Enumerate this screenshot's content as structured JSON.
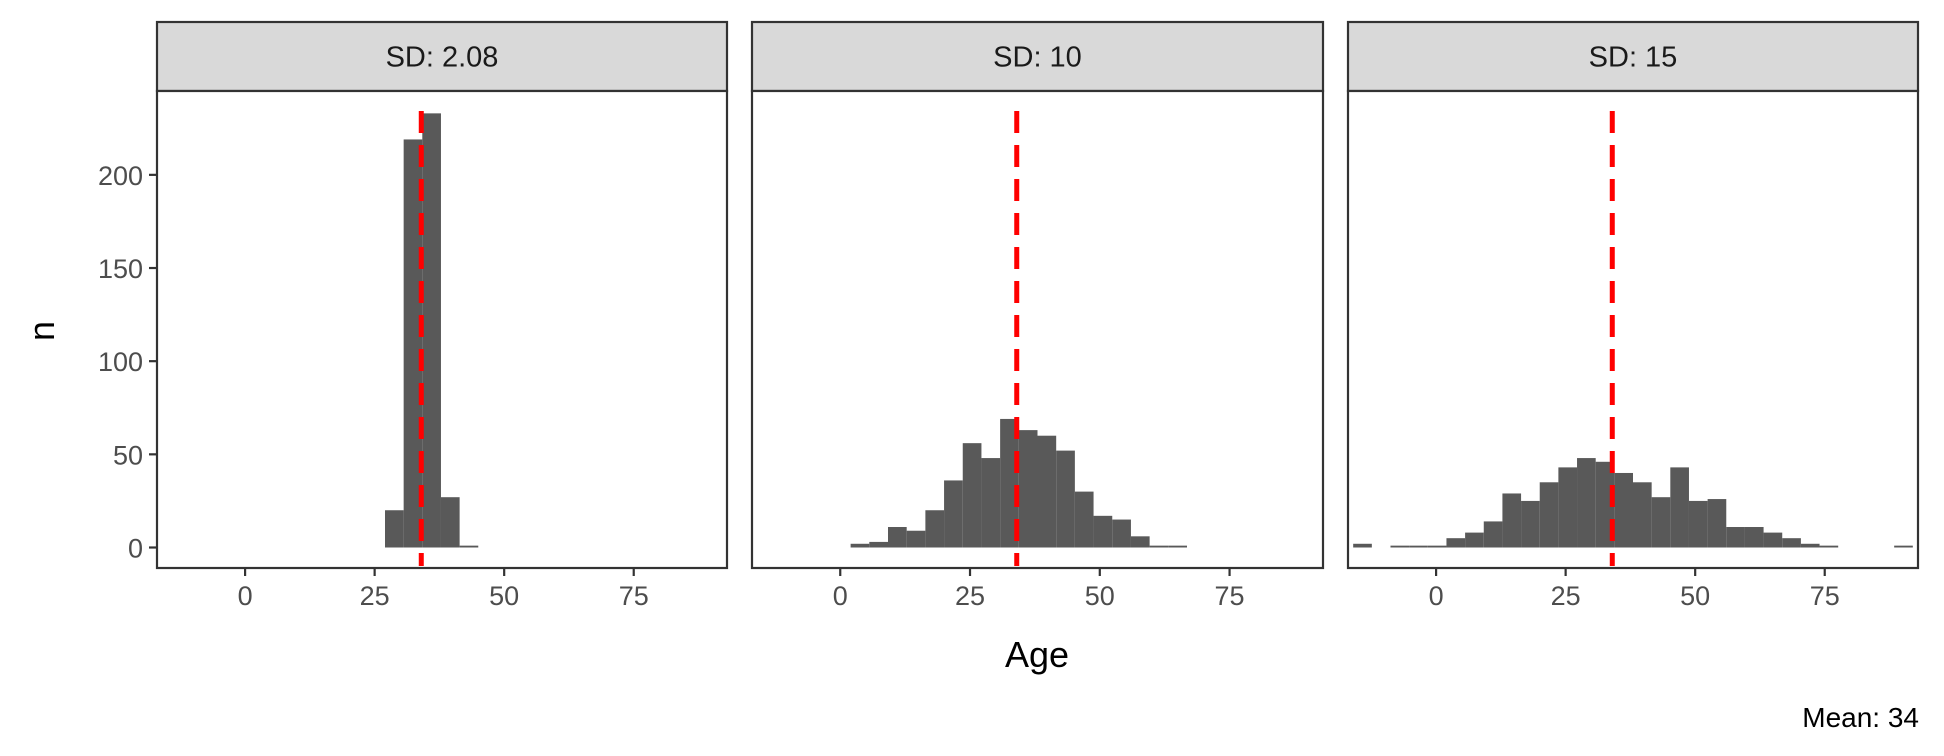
{
  "chart_data": {
    "type": "histogram",
    "xlabel": "Age",
    "ylabel": "n",
    "caption": "Mean: 34",
    "xlim": [
      -17,
      93
    ],
    "ylim": [
      -11,
      245
    ],
    "x_ticks": [
      0,
      25,
      50,
      75
    ],
    "x_tick_labels": [
      "0",
      "25",
      "50",
      "75"
    ],
    "y_ticks": [
      0,
      50,
      100,
      150,
      200
    ],
    "y_tick_labels": [
      "0",
      "50",
      "100",
      "150",
      "200"
    ],
    "mean_line": {
      "x": 34,
      "color": "#ff0000",
      "style": "dashed"
    },
    "bar_color": "#595959",
    "grid": false,
    "facets": [
      {
        "label": "SD: 2.08",
        "bin_width": 3.6,
        "bin_starts": [
          27,
          30.6,
          34.2,
          37.8,
          41.4
        ],
        "counts": [
          20,
          219,
          233,
          27,
          1
        ]
      },
      {
        "label": "SD: 10",
        "bin_width": 3.6,
        "bin_starts": [
          2,
          5.6,
          9.2,
          12.8,
          16.4,
          20,
          23.6,
          27.2,
          30.8,
          34.4,
          38,
          41.6,
          45.2,
          48.8,
          52.4,
          56,
          59.6,
          63.2
        ],
        "counts": [
          2,
          3,
          11,
          9,
          20,
          36,
          56,
          48,
          69,
          63,
          60,
          52,
          30,
          17,
          15,
          6,
          1,
          1
        ]
      },
      {
        "label": "SD: 15",
        "bin_width": 3.6,
        "bin_starts": [
          -16,
          -12.4,
          -8.8,
          -5.2,
          -1.6,
          2,
          5.6,
          9.2,
          12.8,
          16.4,
          20,
          23.6,
          27.2,
          30.8,
          34.4,
          38,
          41.6,
          45.2,
          48.8,
          52.4,
          56,
          59.6,
          63.2,
          66.8,
          70.4,
          74,
          77.6,
          81.2,
          84.8,
          88.4
        ],
        "counts": [
          2,
          0,
          1,
          1,
          1,
          5,
          8,
          14,
          29,
          25,
          35,
          43,
          48,
          46,
          40,
          35,
          27,
          43,
          25,
          26,
          11,
          11,
          8,
          5,
          2,
          1,
          0,
          0,
          0,
          1
        ]
      }
    ]
  }
}
